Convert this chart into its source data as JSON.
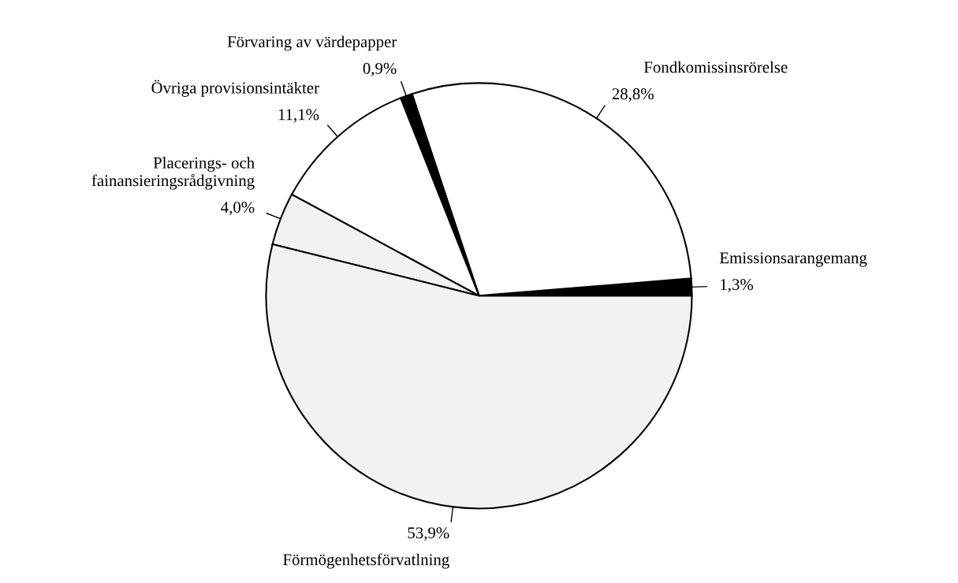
{
  "chart_data": {
    "type": "pie",
    "categories": [
      "Emissionsarangemang",
      "Fondkomissinsrörelse",
      "Förvaring av värdepapper",
      "Övriga provisionsintäkter",
      "Placerings- och\nfainansieringsrådgivning",
      "Förmögenhetsförvatlning"
    ],
    "values": [
      1.3,
      28.8,
      0.9,
      11.1,
      4.0,
      53.9
    ],
    "colors": [
      "#000000",
      "#ffffff",
      "#000000",
      "#ffffff",
      "#f2f2f2",
      "#f2f2f2"
    ],
    "value_labels": [
      "1,3%",
      "28,8%",
      "0,9%",
      "11,1%",
      "4,0%",
      "53,9%"
    ],
    "legend": false
  }
}
